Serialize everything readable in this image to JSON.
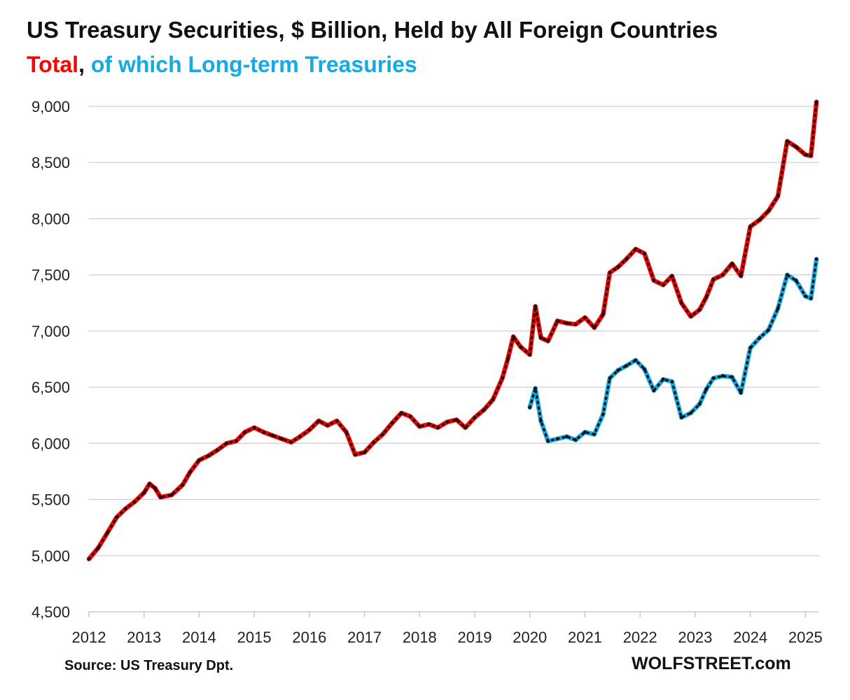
{
  "chart_data": {
    "type": "line",
    "title": "US Treasury Securities, $ Billion, Held by All Foreign Countries",
    "subtitle_parts": [
      {
        "text": "Total",
        "color": "#ff0000"
      },
      {
        "text": ", ",
        "color": "#111111"
      },
      {
        "text": "of which Long-term Treasuries",
        "color": "#17a9e1"
      }
    ],
    "ylim": [
      4500,
      9000
    ],
    "yticks": [
      4500,
      5000,
      5500,
      6000,
      6500,
      7000,
      7500,
      8000,
      8500,
      9000
    ],
    "ytick_labels": [
      "4,500",
      "5,000",
      "5,500",
      "6,000",
      "6,500",
      "7,000",
      "7,500",
      "8,000",
      "8,500",
      "9,000"
    ],
    "xlim": [
      2012,
      2025.3
    ],
    "xticks": [
      2012,
      2013,
      2014,
      2015,
      2016,
      2017,
      2018,
      2019,
      2020,
      2021,
      2022,
      2023,
      2024,
      2025
    ],
    "xtick_labels": [
      "2012",
      "2013",
      "2014",
      "2015",
      "2016",
      "2017",
      "2018",
      "2019",
      "2020",
      "2021",
      "2022",
      "2023",
      "2024",
      "2025"
    ],
    "grid": true,
    "series": [
      {
        "name": "Total",
        "color": "#ff0000",
        "x": [
          2012.0,
          2012.17,
          2012.33,
          2012.5,
          2012.67,
          2012.83,
          2013.0,
          2013.1,
          2013.2,
          2013.3,
          2013.5,
          2013.7,
          2013.83,
          2014.0,
          2014.17,
          2014.33,
          2014.5,
          2014.67,
          2014.83,
          2015.0,
          2015.17,
          2015.33,
          2015.5,
          2015.67,
          2015.83,
          2016.0,
          2016.17,
          2016.33,
          2016.5,
          2016.67,
          2016.83,
          2017.0,
          2017.17,
          2017.33,
          2017.5,
          2017.67,
          2017.83,
          2018.0,
          2018.17,
          2018.33,
          2018.5,
          2018.67,
          2018.83,
          2019.0,
          2019.17,
          2019.33,
          2019.5,
          2019.6,
          2019.7,
          2019.83,
          2020.0,
          2020.1,
          2020.2,
          2020.33,
          2020.5,
          2020.67,
          2020.83,
          2021.0,
          2021.17,
          2021.33,
          2021.45,
          2021.6,
          2021.75,
          2021.92,
          2022.08,
          2022.25,
          2022.42,
          2022.58,
          2022.75,
          2022.92,
          2023.08,
          2023.2,
          2023.33,
          2023.5,
          2023.67,
          2023.83,
          2024.0,
          2024.17,
          2024.33,
          2024.5,
          2024.67,
          2024.83,
          2025.0,
          2025.1,
          2025.2
        ],
        "values": [
          4970,
          5070,
          5200,
          5340,
          5420,
          5480,
          5560,
          5640,
          5600,
          5520,
          5540,
          5630,
          5740,
          5850,
          5890,
          5940,
          6000,
          6020,
          6100,
          6140,
          6100,
          6070,
          6040,
          6010,
          6060,
          6120,
          6200,
          6160,
          6200,
          6100,
          5900,
          5920,
          6010,
          6080,
          6180,
          6270,
          6240,
          6150,
          6170,
          6140,
          6190,
          6210,
          6140,
          6230,
          6300,
          6390,
          6580,
          6750,
          6950,
          6860,
          6790,
          7220,
          6940,
          6910,
          7090,
          7070,
          7060,
          7120,
          7030,
          7150,
          7520,
          7570,
          7640,
          7730,
          7690,
          7450,
          7410,
          7490,
          7250,
          7130,
          7190,
          7300,
          7460,
          7500,
          7600,
          7490,
          7930,
          7990,
          8070,
          8200,
          8690,
          8640,
          8570,
          8560,
          9040
        ]
      },
      {
        "name": "of which Long-term Treasuries",
        "color": "#17a9e1",
        "x": [
          2020.0,
          2020.1,
          2020.2,
          2020.33,
          2020.5,
          2020.67,
          2020.83,
          2021.0,
          2021.17,
          2021.33,
          2021.45,
          2021.6,
          2021.75,
          2021.92,
          2022.08,
          2022.25,
          2022.42,
          2022.58,
          2022.75,
          2022.92,
          2023.08,
          2023.2,
          2023.33,
          2023.5,
          2023.67,
          2023.83,
          2024.0,
          2024.17,
          2024.33,
          2024.5,
          2024.67,
          2024.83,
          2025.0,
          2025.1,
          2025.2
        ],
        "values": [
          6320,
          6490,
          6200,
          6020,
          6040,
          6060,
          6030,
          6100,
          6080,
          6260,
          6580,
          6650,
          6690,
          6740,
          6660,
          6470,
          6570,
          6550,
          6230,
          6270,
          6350,
          6480,
          6580,
          6600,
          6590,
          6450,
          6850,
          6940,
          7010,
          7200,
          7500,
          7450,
          7310,
          7290,
          7640
        ]
      }
    ]
  },
  "source_label": "Source: US Treasury  Dpt.",
  "brand_label": "WOLFSTREET.com"
}
